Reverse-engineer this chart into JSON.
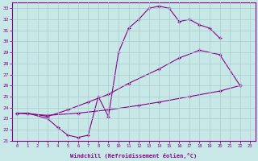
{
  "bg_color": "#c8e8e8",
  "grid_color": "#aacccc",
  "line_color": "#880088",
  "xlabel": "Windchill (Refroidissement éolien,°C)",
  "ylim": [
    21,
    33.5
  ],
  "xlim": [
    -0.5,
    23.5
  ],
  "yticks": [
    21,
    22,
    23,
    24,
    25,
    26,
    27,
    28,
    29,
    30,
    31,
    32,
    33
  ],
  "xticks": [
    0,
    1,
    2,
    3,
    4,
    5,
    6,
    7,
    8,
    9,
    10,
    11,
    12,
    13,
    14,
    15,
    16,
    17,
    18,
    19,
    20,
    21,
    22,
    23
  ],
  "line1_x": [
    0,
    1,
    3,
    4,
    5,
    6,
    7,
    8,
    9,
    10,
    11,
    12,
    13,
    14,
    15,
    16,
    17,
    18,
    19,
    20
  ],
  "line1_y": [
    23.5,
    23.5,
    23.0,
    22.2,
    21.5,
    21.3,
    21.5,
    25.0,
    23.2,
    29.0,
    31.2,
    32.0,
    33.0,
    33.2,
    33.0,
    31.8,
    32.0,
    31.5,
    31.2,
    30.3
  ],
  "line2_x": [
    0,
    1,
    3,
    5,
    7,
    9,
    11,
    14,
    16,
    18,
    20,
    22
  ],
  "line2_y": [
    23.5,
    23.5,
    23.2,
    23.8,
    24.5,
    25.2,
    26.2,
    27.5,
    28.5,
    29.2,
    28.8,
    26.0
  ],
  "line3_x": [
    0,
    3,
    6,
    9,
    12,
    14,
    17,
    20,
    22
  ],
  "line3_y": [
    23.5,
    23.3,
    23.5,
    23.8,
    24.2,
    24.5,
    25.0,
    25.5,
    26.0
  ]
}
